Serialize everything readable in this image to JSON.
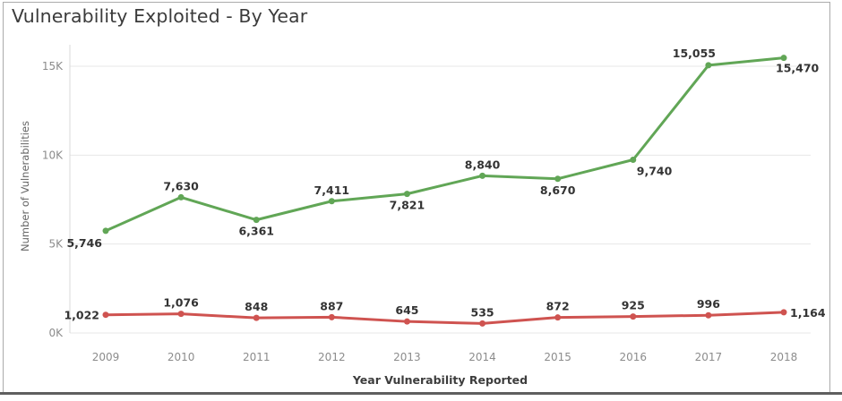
{
  "chart_data": {
    "type": "line",
    "title": "Vulnerability Exploited - By Year",
    "xlabel": "Year Vulnerability Reported",
    "ylabel": "Number of Vulnerabilities",
    "categories": [
      "2009",
      "2010",
      "2011",
      "2012",
      "2013",
      "2014",
      "2015",
      "2016",
      "2017",
      "2018"
    ],
    "y_ticks": [
      "0K",
      "5K",
      "10K",
      "15K"
    ],
    "ylim": [
      0,
      16200
    ],
    "grid": "horizontal",
    "legend": "none",
    "series": [
      {
        "name": "green-series",
        "color": "#61a656",
        "values": [
          5746,
          7630,
          6361,
          7411,
          7821,
          8840,
          8670,
          9740,
          15055,
          15470
        ],
        "labels": [
          "5,746",
          "7,630",
          "6,361",
          "7,411",
          "7,821",
          "8,840",
          "8,670",
          "9,740",
          "15,055",
          "15,470"
        ],
        "label_positions": [
          "below-left",
          "above",
          "below",
          "above",
          "below",
          "above",
          "below",
          "below-right",
          "above-left",
          "right-below"
        ]
      },
      {
        "name": "red-series",
        "color": "#cf5350",
        "values": [
          1022,
          1076,
          848,
          887,
          645,
          535,
          872,
          925,
          996,
          1164
        ],
        "labels": [
          "1,022",
          "1,076",
          "848",
          "887",
          "645",
          "535",
          "872",
          "925",
          "996",
          "1,164"
        ],
        "label_positions": [
          "left",
          "above",
          "above",
          "above",
          "above",
          "above",
          "above",
          "above",
          "above",
          "right"
        ]
      }
    ]
  }
}
